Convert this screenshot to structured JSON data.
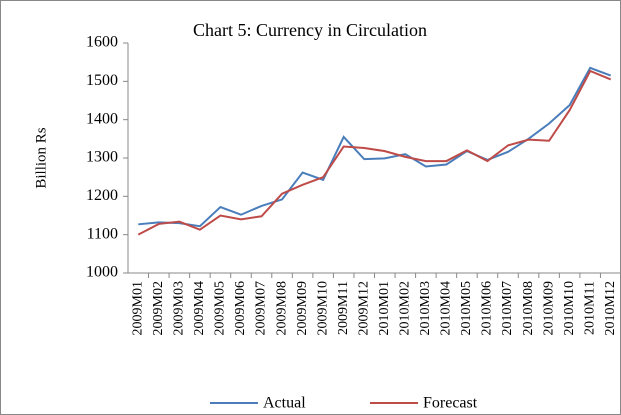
{
  "chart_data": {
    "type": "line",
    "title": "Chart 5: Currency in Circulation",
    "y_label": "Billion Rs",
    "categories": [
      "2009M01",
      "2009M02",
      "2009M03",
      "2009M04",
      "2009M05",
      "2009M06",
      "2009M07",
      "2009M08",
      "2009M09",
      "2009M10",
      "2009M11",
      "2009M12",
      "2010M01",
      "2010M02",
      "2010M03",
      "2010M04",
      "2010M05",
      "2010M06",
      "2010M07",
      "2010M08",
      "2010M09",
      "2010M10",
      "2010M11",
      "2010M12"
    ],
    "series": [
      {
        "name": "Actual",
        "color": "#4a7ebb",
        "values": [
          1127,
          1132,
          1130,
          1122,
          1172,
          1152,
          1175,
          1192,
          1262,
          1243,
          1355,
          1297,
          1299,
          1310,
          1278,
          1283,
          1318,
          1295,
          1316,
          1350,
          1390,
          1438,
          1535,
          1515
        ]
      },
      {
        "name": "Forecast",
        "color": "#be4b48",
        "values": [
          1100,
          1128,
          1134,
          1113,
          1150,
          1140,
          1148,
          1207,
          1230,
          1250,
          1330,
          1326,
          1318,
          1303,
          1292,
          1292,
          1320,
          1292,
          1333,
          1348,
          1345,
          1425,
          1527,
          1505
        ]
      }
    ],
    "ylim": [
      1000,
      1600
    ],
    "yticks": [
      1000,
      1100,
      1200,
      1300,
      1400,
      1500,
      1600
    ],
    "legend": "bottom"
  }
}
